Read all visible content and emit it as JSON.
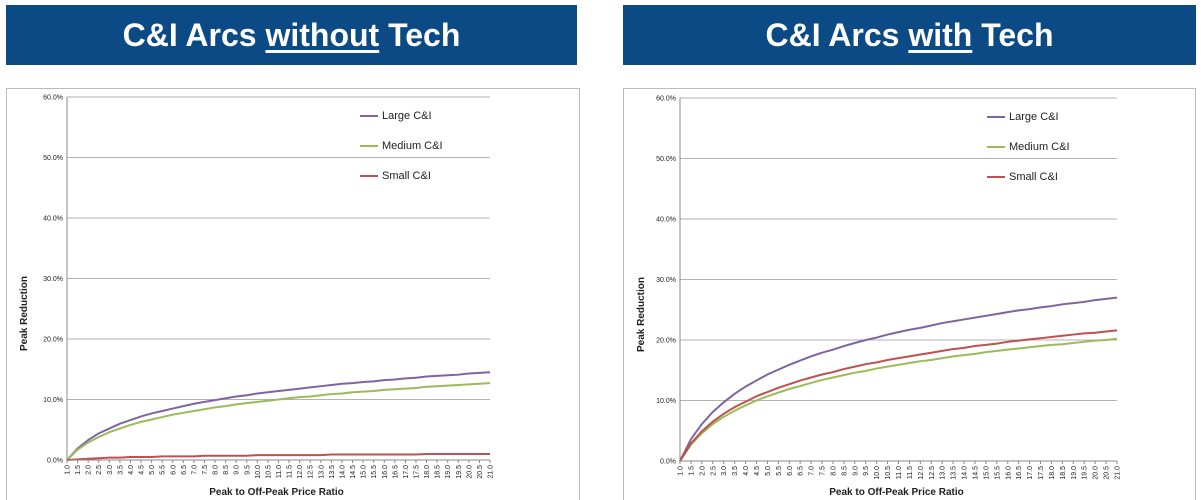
{
  "panels": [
    {
      "header": {
        "before": "C&I Arcs ",
        "emphasis": "without",
        "after": " Tech"
      }
    },
    {
      "header": {
        "before": "C&I Arcs ",
        "emphasis": "with",
        "after": " Tech"
      }
    }
  ],
  "chart_data": [
    {
      "type": "line",
      "x_label": "Peak to Off-Peak Price Ratio",
      "y_label": "Peak Reduction",
      "categories": [
        "1.0",
        "1.5",
        "2.0",
        "2.5",
        "3.0",
        "3.5",
        "4.0",
        "4.5",
        "5.0",
        "5.5",
        "6.0",
        "6.5",
        "7.0",
        "7.5",
        "8.0",
        "8.5",
        "9.0",
        "9.5",
        "10.0",
        "10.5",
        "11.0",
        "11.5",
        "12.0",
        "12.5",
        "13.0",
        "13.5",
        "14.0",
        "14.5",
        "15.0",
        "15.5",
        "16.0",
        "16.5",
        "17.0",
        "17.5",
        "18.0",
        "18.5",
        "19.0",
        "19.5",
        "20.0",
        "20.5",
        "21.0"
      ],
      "ylim": [
        0,
        60
      ],
      "yticks": [
        {
          "value": 0,
          "label": "0.0%"
        },
        {
          "value": 10,
          "label": "10.0%"
        },
        {
          "value": 20,
          "label": "20.0%"
        },
        {
          "value": 30,
          "label": "30.0%"
        },
        {
          "value": 40,
          "label": "40.0%"
        },
        {
          "value": 50,
          "label": "50.0%"
        },
        {
          "value": 60,
          "label": "60.0%"
        }
      ],
      "grid": true,
      "legend": "upper right",
      "series": [
        {
          "name": "Large C&I",
          "color": "#8064a2",
          "values": [
            0,
            1.9,
            3.3,
            4.4,
            5.2,
            6.0,
            6.6,
            7.2,
            7.7,
            8.1,
            8.5,
            8.9,
            9.3,
            9.6,
            9.9,
            10.2,
            10.5,
            10.7,
            11.0,
            11.2,
            11.4,
            11.6,
            11.8,
            12.0,
            12.2,
            12.4,
            12.6,
            12.7,
            12.9,
            13.0,
            13.2,
            13.3,
            13.5,
            13.6,
            13.8,
            13.9,
            14.0,
            14.1,
            14.3,
            14.4,
            14.5
          ]
        },
        {
          "name": "Medium C&I",
          "color": "#9bbb59",
          "values": [
            0,
            1.7,
            2.9,
            3.8,
            4.6,
            5.2,
            5.8,
            6.3,
            6.7,
            7.1,
            7.5,
            7.8,
            8.1,
            8.4,
            8.7,
            8.9,
            9.2,
            9.4,
            9.6,
            9.8,
            10.0,
            10.2,
            10.4,
            10.5,
            10.7,
            10.9,
            11.0,
            11.2,
            11.3,
            11.4,
            11.6,
            11.7,
            11.8,
            11.9,
            12.1,
            12.2,
            12.3,
            12.4,
            12.5,
            12.6,
            12.7
          ]
        },
        {
          "name": "Small C&I",
          "color": "#c0504d",
          "values": [
            0,
            0.1,
            0.2,
            0.3,
            0.4,
            0.4,
            0.5,
            0.5,
            0.5,
            0.6,
            0.6,
            0.6,
            0.6,
            0.7,
            0.7,
            0.7,
            0.7,
            0.7,
            0.8,
            0.8,
            0.8,
            0.8,
            0.8,
            0.8,
            0.8,
            0.9,
            0.9,
            0.9,
            0.9,
            0.9,
            0.9,
            0.9,
            0.9,
            0.9,
            1.0,
            1.0,
            1.0,
            1.0,
            1.0,
            1.0,
            1.0
          ]
        }
      ]
    },
    {
      "type": "line",
      "x_label": "Peak to Off-Peak Price Ratio",
      "y_label": "Peak Reduction",
      "categories": [
        "1.0",
        "1.5",
        "2.0",
        "2.5",
        "3.0",
        "3.5",
        "4.0",
        "4.5",
        "5.0",
        "5.5",
        "6.0",
        "6.5",
        "7.0",
        "7.5",
        "8.0",
        "8.5",
        "9.0",
        "9.5",
        "10.0",
        "10.5",
        "11.0",
        "11.5",
        "12.0",
        "12.5",
        "13.0",
        "13.5",
        "14.0",
        "14.5",
        "15.0",
        "15.5",
        "16.0",
        "16.5",
        "17.0",
        "17.5",
        "18.0",
        "18.5",
        "19.0",
        "19.5",
        "20.0",
        "20.5",
        "21.0"
      ],
      "ylim": [
        0,
        60
      ],
      "yticks": [
        {
          "value": 0,
          "label": "0.0%"
        },
        {
          "value": 10,
          "label": "10.0%"
        },
        {
          "value": 20,
          "label": "20.0%"
        },
        {
          "value": 30,
          "label": "30.0%"
        },
        {
          "value": 40,
          "label": "40.0%"
        },
        {
          "value": 50,
          "label": "50.0%"
        },
        {
          "value": 60,
          "label": "60.0%"
        }
      ],
      "grid": true,
      "legend": "upper right",
      "series": [
        {
          "name": "Large C&I",
          "color": "#8064a2",
          "values": [
            0,
            3.6,
            6.1,
            8.1,
            9.7,
            11.1,
            12.3,
            13.3,
            14.3,
            15.1,
            15.9,
            16.6,
            17.3,
            17.9,
            18.4,
            19.0,
            19.5,
            20.0,
            20.4,
            20.9,
            21.3,
            21.7,
            22.0,
            22.4,
            22.8,
            23.1,
            23.4,
            23.7,
            24.0,
            24.3,
            24.6,
            24.9,
            25.1,
            25.4,
            25.6,
            25.9,
            26.1,
            26.3,
            26.6,
            26.8,
            27.0
          ]
        },
        {
          "name": "Medium C&I",
          "color": "#9bbb59",
          "values": [
            0,
            2.7,
            4.6,
            6.1,
            7.3,
            8.3,
            9.2,
            10.0,
            10.7,
            11.3,
            11.9,
            12.4,
            12.9,
            13.4,
            13.8,
            14.2,
            14.6,
            14.9,
            15.3,
            15.6,
            15.9,
            16.2,
            16.5,
            16.7,
            17.0,
            17.3,
            17.5,
            17.7,
            18.0,
            18.2,
            18.4,
            18.6,
            18.8,
            19.0,
            19.2,
            19.3,
            19.5,
            19.7,
            19.9,
            20.0,
            20.2
          ]
        },
        {
          "name": "Small C&I",
          "color": "#c0504d",
          "values": [
            0,
            2.9,
            4.9,
            6.5,
            7.8,
            8.9,
            9.8,
            10.7,
            11.4,
            12.1,
            12.7,
            13.3,
            13.8,
            14.3,
            14.7,
            15.2,
            15.6,
            16.0,
            16.3,
            16.7,
            17.0,
            17.3,
            17.6,
            17.9,
            18.2,
            18.5,
            18.7,
            19.0,
            19.2,
            19.4,
            19.7,
            19.9,
            20.1,
            20.3,
            20.5,
            20.7,
            20.9,
            21.1,
            21.2,
            21.4,
            21.6
          ]
        }
      ]
    }
  ]
}
